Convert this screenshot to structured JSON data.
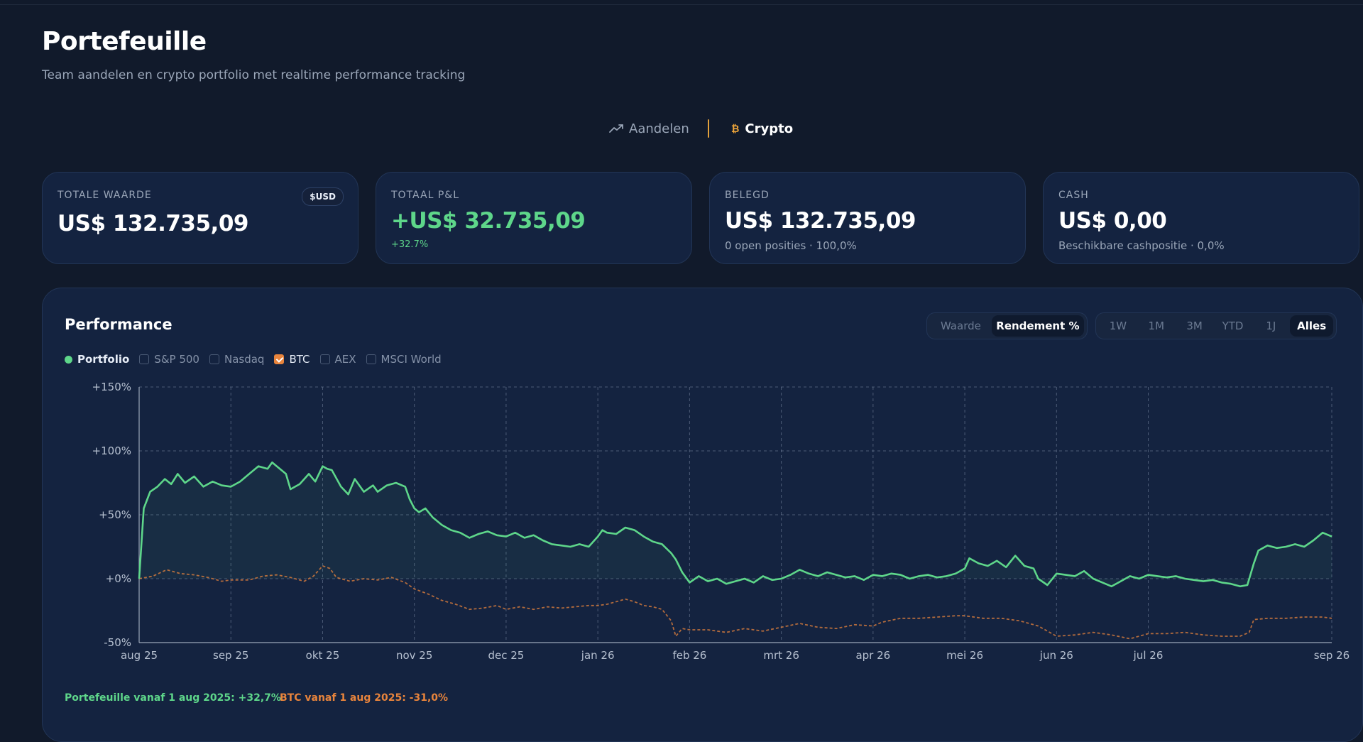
{
  "page": {
    "title": "Portefeuille",
    "subtitle": "Team aandelen en crypto portfolio met realtime performance tracking"
  },
  "tabs": [
    {
      "label": "Aandelen",
      "icon": "trend-line-icon",
      "active": false
    },
    {
      "label": "Crypto",
      "icon": "bitcoin-icon",
      "icon_glyph": "₿",
      "active": true
    }
  ],
  "cards": [
    {
      "label": "TOTALE WAARDE",
      "value": "US$ 132.735,09",
      "badge": "$USD",
      "sub": ""
    },
    {
      "label": "TOTAAL P&L",
      "value": "+US$ 32.735,09",
      "sub": "+32.7%"
    },
    {
      "label": "BELEGD",
      "value": "US$ 132.735,09",
      "sub": "0 open posities · 100,0%"
    },
    {
      "label": "CASH",
      "value": "US$ 0,00",
      "sub": "Beschikbare cashpositie · 0,0%"
    }
  ],
  "performance": {
    "title": "Performance",
    "modes": [
      "Waarde",
      "Rendement %"
    ],
    "active_mode": "Rendement %",
    "ranges": [
      "1W",
      "1M",
      "3M",
      "YTD",
      "1J",
      "Alles"
    ],
    "active_range": "Alles",
    "legend": [
      {
        "label": "Portfolio",
        "type": "dot",
        "checked": true
      },
      {
        "label": "S&P 500",
        "type": "checkbox",
        "checked": false
      },
      {
        "label": "Nasdaq",
        "type": "checkbox",
        "checked": false
      },
      {
        "label": "BTC",
        "type": "checkbox",
        "checked": true
      },
      {
        "label": "AEX",
        "type": "checkbox",
        "checked": false
      },
      {
        "label": "MSCI World",
        "type": "checkbox",
        "checked": false
      }
    ],
    "footer_portfolio": "Portefeuille vanaf 1 aug 2025: +32,7%",
    "footer_btc": "BTC vanaf 1 aug 2025: -31,0%"
  },
  "colors": {
    "portfolio": "#5ed68a",
    "btc": "#e8843c",
    "grid": "#7b8aa3",
    "background": "#111a2b",
    "panel": "#142340"
  },
  "chart_data": {
    "type": "line",
    "title": "",
    "ylabel": "",
    "xlabel": "",
    "ylim": [
      -50,
      150
    ],
    "y_ticks": [
      150,
      100,
      50,
      0,
      -50
    ],
    "y_tick_labels": [
      "+150%",
      "+100%",
      "+50%",
      "+0%",
      "-50%"
    ],
    "x_tick_labels": [
      "aug 25",
      "sep 25",
      "okt 25",
      "nov 25",
      "dec 25",
      "jan 26",
      "feb 26",
      "mrt 26",
      "apr 26",
      "mei 26",
      "jun 26",
      "jul 26",
      "sep 26"
    ],
    "x_tick_months": [
      0,
      1,
      2,
      3,
      4,
      5,
      6,
      7,
      8,
      9,
      10,
      11,
      13
    ],
    "x_range_months": [
      0,
      13
    ],
    "grid": true,
    "legend_position": "top-left",
    "series": [
      {
        "name": "Portfolio",
        "style": "solid",
        "points": [
          [
            0,
            0
          ],
          [
            0.05,
            55
          ],
          [
            0.12,
            68
          ],
          [
            0.2,
            72
          ],
          [
            0.28,
            78
          ],
          [
            0.35,
            74
          ],
          [
            0.42,
            82
          ],
          [
            0.5,
            75
          ],
          [
            0.6,
            80
          ],
          [
            0.7,
            72
          ],
          [
            0.8,
            76
          ],
          [
            0.9,
            73
          ],
          [
            1.0,
            72
          ],
          [
            1.1,
            76
          ],
          [
            1.2,
            82
          ],
          [
            1.3,
            88
          ],
          [
            1.4,
            86
          ],
          [
            1.45,
            91
          ],
          [
            1.5,
            88
          ],
          [
            1.6,
            82
          ],
          [
            1.65,
            70
          ],
          [
            1.75,
            74
          ],
          [
            1.85,
            82
          ],
          [
            1.92,
            76
          ],
          [
            2.0,
            88
          ],
          [
            2.05,
            86
          ],
          [
            2.1,
            85
          ],
          [
            2.2,
            72
          ],
          [
            2.28,
            66
          ],
          [
            2.35,
            78
          ],
          [
            2.45,
            68
          ],
          [
            2.55,
            73
          ],
          [
            2.6,
            68
          ],
          [
            2.7,
            73
          ],
          [
            2.8,
            75
          ],
          [
            2.9,
            72
          ],
          [
            2.95,
            62
          ],
          [
            3.0,
            55
          ],
          [
            3.05,
            52
          ],
          [
            3.12,
            55
          ],
          [
            3.2,
            48
          ],
          [
            3.3,
            42
          ],
          [
            3.4,
            38
          ],
          [
            3.5,
            36
          ],
          [
            3.6,
            32
          ],
          [
            3.7,
            35
          ],
          [
            3.8,
            37
          ],
          [
            3.9,
            34
          ],
          [
            4.0,
            33
          ],
          [
            4.1,
            36
          ],
          [
            4.2,
            32
          ],
          [
            4.3,
            34
          ],
          [
            4.4,
            30
          ],
          [
            4.5,
            27
          ],
          [
            4.6,
            26
          ],
          [
            4.7,
            25
          ],
          [
            4.8,
            27
          ],
          [
            4.9,
            25
          ],
          [
            5.0,
            33
          ],
          [
            5.05,
            38
          ],
          [
            5.1,
            36
          ],
          [
            5.2,
            35
          ],
          [
            5.3,
            40
          ],
          [
            5.4,
            38
          ],
          [
            5.5,
            33
          ],
          [
            5.6,
            29
          ],
          [
            5.7,
            27
          ],
          [
            5.8,
            20
          ],
          [
            5.85,
            15
          ],
          [
            5.92,
            5
          ],
          [
            6.0,
            -3
          ],
          [
            6.1,
            2
          ],
          [
            6.2,
            -2
          ],
          [
            6.3,
            0
          ],
          [
            6.4,
            -4
          ],
          [
            6.5,
            -2
          ],
          [
            6.6,
            0
          ],
          [
            6.7,
            -3
          ],
          [
            6.8,
            2
          ],
          [
            6.9,
            -1
          ],
          [
            7.0,
            0
          ],
          [
            7.1,
            3
          ],
          [
            7.2,
            7
          ],
          [
            7.3,
            4
          ],
          [
            7.4,
            2
          ],
          [
            7.5,
            5
          ],
          [
            7.6,
            3
          ],
          [
            7.7,
            1
          ],
          [
            7.8,
            2
          ],
          [
            7.9,
            -1
          ],
          [
            8.0,
            3
          ],
          [
            8.1,
            2
          ],
          [
            8.2,
            4
          ],
          [
            8.3,
            3
          ],
          [
            8.4,
            0
          ],
          [
            8.5,
            2
          ],
          [
            8.6,
            3
          ],
          [
            8.7,
            1
          ],
          [
            8.8,
            2
          ],
          [
            8.9,
            4
          ],
          [
            9.0,
            8
          ],
          [
            9.05,
            16
          ],
          [
            9.15,
            12
          ],
          [
            9.25,
            10
          ],
          [
            9.35,
            14
          ],
          [
            9.45,
            9
          ],
          [
            9.55,
            18
          ],
          [
            9.65,
            10
          ],
          [
            9.75,
            8
          ],
          [
            9.8,
            0
          ],
          [
            9.9,
            -5
          ],
          [
            10.0,
            4
          ],
          [
            10.1,
            3
          ],
          [
            10.2,
            2
          ],
          [
            10.3,
            6
          ],
          [
            10.4,
            0
          ],
          [
            10.5,
            -3
          ],
          [
            10.6,
            -6
          ],
          [
            10.7,
            -2
          ],
          [
            10.8,
            2
          ],
          [
            10.9,
            0
          ],
          [
            11.0,
            3
          ],
          [
            11.1,
            2
          ],
          [
            11.2,
            1
          ],
          [
            11.3,
            2
          ],
          [
            11.4,
            0
          ],
          [
            11.5,
            -1
          ],
          [
            11.6,
            -2
          ],
          [
            11.7,
            -1
          ],
          [
            11.8,
            -3
          ],
          [
            11.9,
            -4
          ],
          [
            12.0,
            -6
          ],
          [
            12.08,
            -5
          ],
          [
            12.15,
            12
          ],
          [
            12.2,
            22
          ],
          [
            12.3,
            26
          ],
          [
            12.4,
            24
          ],
          [
            12.5,
            25
          ],
          [
            12.6,
            27
          ],
          [
            12.7,
            25
          ],
          [
            12.8,
            30
          ],
          [
            12.9,
            36
          ],
          [
            13.0,
            33
          ]
        ]
      },
      {
        "name": "BTC",
        "style": "dashed",
        "points": [
          [
            0,
            0
          ],
          [
            0.15,
            2
          ],
          [
            0.3,
            7
          ],
          [
            0.45,
            4
          ],
          [
            0.6,
            3
          ],
          [
            0.75,
            1
          ],
          [
            0.9,
            -2
          ],
          [
            1.0,
            -1
          ],
          [
            1.2,
            -1
          ],
          [
            1.35,
            2
          ],
          [
            1.5,
            3
          ],
          [
            1.65,
            1
          ],
          [
            1.8,
            -2
          ],
          [
            1.9,
            2
          ],
          [
            2.0,
            10
          ],
          [
            2.08,
            8
          ],
          [
            2.15,
            1
          ],
          [
            2.3,
            -2
          ],
          [
            2.45,
            0
          ],
          [
            2.6,
            -1
          ],
          [
            2.75,
            1
          ],
          [
            2.9,
            -3
          ],
          [
            3.0,
            -8
          ],
          [
            3.15,
            -12
          ],
          [
            3.3,
            -17
          ],
          [
            3.45,
            -20
          ],
          [
            3.6,
            -24
          ],
          [
            3.75,
            -23
          ],
          [
            3.9,
            -21
          ],
          [
            4.0,
            -24
          ],
          [
            4.15,
            -22
          ],
          [
            4.3,
            -24
          ],
          [
            4.45,
            -22
          ],
          [
            4.6,
            -23
          ],
          [
            4.75,
            -22
          ],
          [
            4.9,
            -21
          ],
          [
            5.0,
            -21
          ],
          [
            5.1,
            -20
          ],
          [
            5.2,
            -18
          ],
          [
            5.3,
            -16
          ],
          [
            5.4,
            -18
          ],
          [
            5.5,
            -21
          ],
          [
            5.6,
            -22
          ],
          [
            5.7,
            -24
          ],
          [
            5.8,
            -33
          ],
          [
            5.85,
            -45
          ],
          [
            5.92,
            -39
          ],
          [
            6.0,
            -40
          ],
          [
            6.2,
            -40
          ],
          [
            6.4,
            -42
          ],
          [
            6.6,
            -39
          ],
          [
            6.8,
            -41
          ],
          [
            7.0,
            -38
          ],
          [
            7.2,
            -35
          ],
          [
            7.4,
            -38
          ],
          [
            7.6,
            -39
          ],
          [
            7.8,
            -36
          ],
          [
            8.0,
            -37
          ],
          [
            8.1,
            -34
          ],
          [
            8.3,
            -31
          ],
          [
            8.5,
            -31
          ],
          [
            8.7,
            -30
          ],
          [
            8.9,
            -29
          ],
          [
            9.0,
            -29
          ],
          [
            9.2,
            -31
          ],
          [
            9.4,
            -31
          ],
          [
            9.6,
            -33
          ],
          [
            9.8,
            -37
          ],
          [
            10.0,
            -45
          ],
          [
            10.2,
            -44
          ],
          [
            10.4,
            -42
          ],
          [
            10.6,
            -44
          ],
          [
            10.8,
            -47
          ],
          [
            11.0,
            -43
          ],
          [
            11.2,
            -43
          ],
          [
            11.4,
            -42
          ],
          [
            11.6,
            -44
          ],
          [
            11.8,
            -45
          ],
          [
            12.0,
            -45
          ],
          [
            12.1,
            -42
          ],
          [
            12.15,
            -32
          ],
          [
            12.3,
            -31
          ],
          [
            12.5,
            -31
          ],
          [
            12.7,
            -30
          ],
          [
            12.9,
            -30
          ],
          [
            13.0,
            -31
          ]
        ]
      }
    ]
  }
}
